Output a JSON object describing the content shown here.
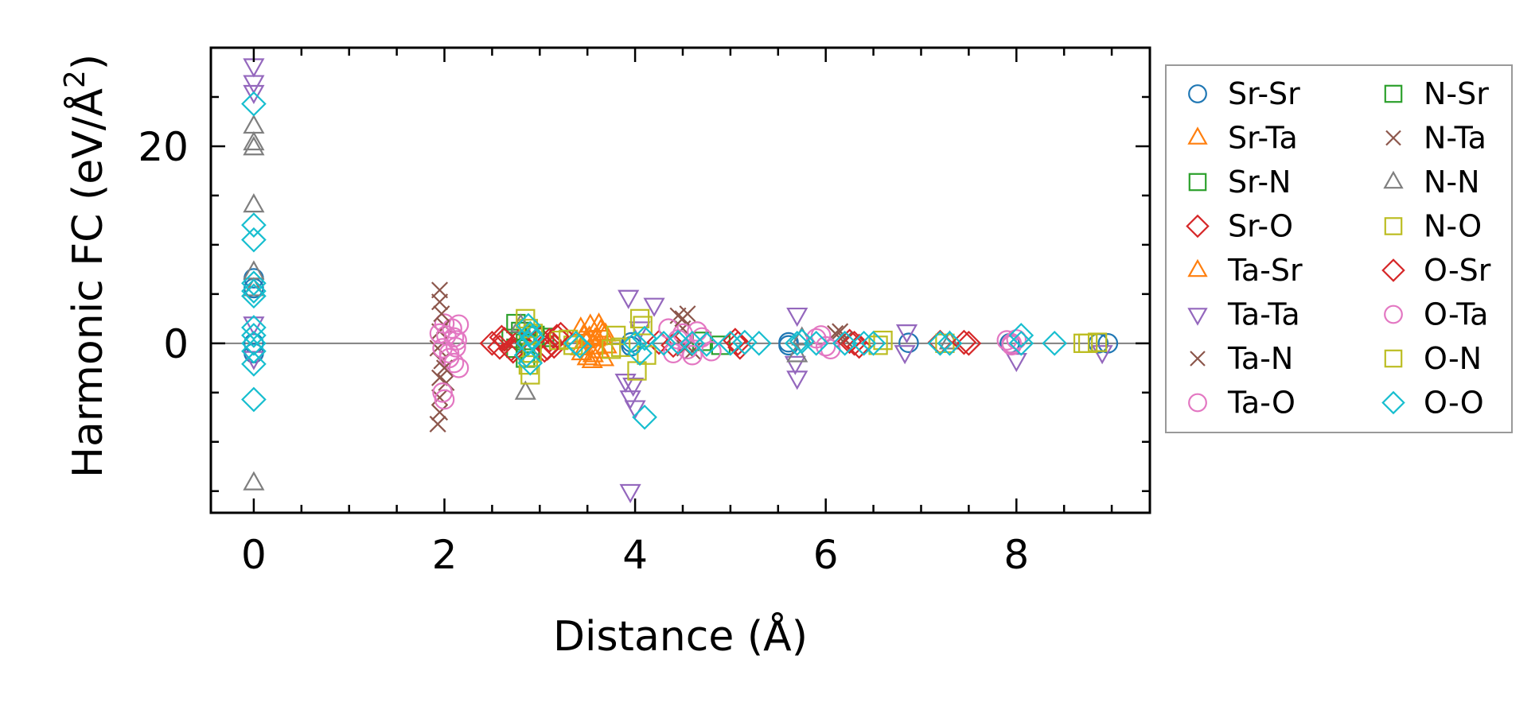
{
  "chart_data": {
    "type": "scatter",
    "title": "",
    "xlabel": "Distance (Å)",
    "ylabel": "Harmonic FC (eV/Å²)",
    "ylabel_main": "Harmonic FC (eV/Å",
    "ylabel_sup": "2",
    "ylabel_close": ")",
    "xlim": [
      -0.45,
      9.4
    ],
    "ylim": [
      -17.2,
      30.0
    ],
    "xticks": [
      0,
      2,
      4,
      6,
      8
    ],
    "yticks": [
      0,
      20
    ],
    "xtick_labels": [
      "0",
      "2",
      "4",
      "6",
      "8"
    ],
    "ytick_labels": [
      "0",
      "20"
    ],
    "grid": false,
    "zero_line": true,
    "legend_position": "outside-right",
    "legend_columns": 2,
    "series": [
      {
        "name": "Sr-Sr",
        "marker": "circle",
        "color": "#1f77b4",
        "points": [
          [
            0,
            0
          ],
          [
            0,
            5.6
          ],
          [
            0,
            6.6
          ],
          [
            0,
            -1.0
          ],
          [
            3.96,
            0.1
          ],
          [
            3.96,
            -0.3
          ],
          [
            5.61,
            0.1
          ],
          [
            5.61,
            -0.2
          ],
          [
            6.87,
            0.05
          ],
          [
            7.93,
            0.0
          ],
          [
            8.86,
            0.0
          ],
          [
            8.96,
            0.0
          ]
        ]
      },
      {
        "name": "Sr-Ta",
        "marker": "triangle-up",
        "color": "#ff7f0e",
        "points": [
          [
            3.43,
            1.5
          ],
          [
            3.43,
            -0.5
          ],
          [
            3.46,
            0.8
          ],
          [
            3.5,
            -1.5
          ],
          [
            3.53,
            1.8
          ],
          [
            3.56,
            -1.2
          ],
          [
            3.6,
            0.5
          ],
          [
            3.63,
            -0.8
          ],
          [
            3.66,
            1.0
          ],
          [
            3.7,
            -0.3
          ],
          [
            3.48,
            0.2
          ],
          [
            3.58,
            0.4
          ],
          [
            3.67,
            -1.6
          ]
        ]
      },
      {
        "name": "Sr-N",
        "marker": "square",
        "color": "#2ca02c",
        "points": [
          [
            2.7,
            0.5
          ],
          [
            2.75,
            -0.5
          ],
          [
            2.8,
            1.2
          ],
          [
            2.85,
            0.0
          ],
          [
            2.9,
            -1.0
          ],
          [
            3.05,
            0.6
          ],
          [
            4.7,
            0.2
          ],
          [
            4.9,
            -0.2
          ]
        ]
      },
      {
        "name": "Sr-O",
        "marker": "diamond",
        "color": "#d62728",
        "points": [
          [
            2.5,
            0.0
          ],
          [
            2.58,
            -0.4
          ],
          [
            2.63,
            0.4
          ],
          [
            2.7,
            -0.6
          ],
          [
            2.78,
            0.2
          ],
          [
            3.0,
            0.5
          ],
          [
            3.05,
            -0.7
          ],
          [
            3.1,
            0.3
          ],
          [
            3.15,
            -0.3
          ],
          [
            3.22,
            0.9
          ],
          [
            4.25,
            0.1
          ],
          [
            4.4,
            -0.2
          ],
          [
            5.05,
            0.3
          ],
          [
            5.1,
            -0.4
          ],
          [
            6.25,
            0.2
          ],
          [
            6.35,
            -0.3
          ],
          [
            7.2,
            0.1
          ],
          [
            7.5,
            0.0
          ]
        ]
      },
      {
        "name": "Ta-Sr",
        "marker": "triangle-up",
        "color": "#ff7f0e",
        "points": [
          [
            3.44,
            -1.0
          ],
          [
            3.52,
            0.6
          ],
          [
            3.59,
            -0.4
          ],
          [
            3.64,
            1.3
          ],
          [
            3.69,
            0.9
          ],
          [
            3.55,
            -1.8
          ],
          [
            3.62,
            1.9
          ]
        ]
      },
      {
        "name": "Ta-Ta",
        "marker": "triangle-down",
        "color": "#9467bd",
        "points": [
          [
            0,
            28.2
          ],
          [
            0,
            26.5
          ],
          [
            0,
            25.5
          ],
          [
            0,
            2.0
          ],
          [
            0,
            -1.5
          ],
          [
            3.93,
            4.7
          ],
          [
            4.2,
            3.9
          ],
          [
            3.9,
            -3.8
          ],
          [
            3.95,
            -5.5
          ],
          [
            4.0,
            -6.5
          ],
          [
            3.95,
            -15.0
          ],
          [
            3.98,
            -4.2
          ],
          [
            4.05,
            1.5
          ],
          [
            5.7,
            2.9
          ],
          [
            5.7,
            -3.5
          ],
          [
            5.68,
            -2.0
          ],
          [
            6.85,
            1.2
          ],
          [
            6.83,
            -0.9
          ],
          [
            8.0,
            -1.7
          ],
          [
            8.9,
            -0.9
          ]
        ]
      },
      {
        "name": "Ta-N",
        "marker": "x",
        "color": "#8c564b",
        "points": [
          [
            1.95,
            5.4
          ],
          [
            1.95,
            4.2
          ],
          [
            1.95,
            1.2
          ],
          [
            1.93,
            -0.5
          ],
          [
            1.97,
            -1.8
          ],
          [
            1.95,
            -3.5
          ],
          [
            1.95,
            -5.5
          ],
          [
            1.95,
            -7.0
          ],
          [
            1.93,
            -8.2
          ],
          [
            2.0,
            1.8
          ],
          [
            2.02,
            -4.0
          ],
          [
            4.45,
            2.8
          ],
          [
            4.55,
            3.0
          ],
          [
            4.5,
            1.5
          ],
          [
            4.6,
            -0.8
          ],
          [
            6.1,
            1.0
          ],
          [
            6.2,
            0.4
          ]
        ]
      },
      {
        "name": "Ta-O",
        "marker": "circle",
        "color": "#e377c2",
        "points": [
          [
            1.95,
            1.0
          ],
          [
            1.98,
            -0.5
          ],
          [
            2.02,
            0.8
          ],
          [
            2.05,
            -1.5
          ],
          [
            2.08,
            1.5
          ],
          [
            2.1,
            -2.0
          ],
          [
            2.13,
            0.3
          ],
          [
            2.15,
            1.9
          ],
          [
            1.98,
            -5.0
          ],
          [
            2.0,
            -5.7
          ],
          [
            2.15,
            -2.5
          ],
          [
            2.0,
            2.0
          ],
          [
            4.35,
            1.5
          ],
          [
            4.4,
            -1.0
          ],
          [
            4.5,
            1.0
          ],
          [
            4.6,
            -1.2
          ],
          [
            4.7,
            0.6
          ],
          [
            4.8,
            -0.8
          ],
          [
            5.95,
            0.8
          ],
          [
            6.05,
            -0.6
          ],
          [
            7.9,
            0.3
          ],
          [
            7.95,
            -0.2
          ]
        ]
      },
      {
        "name": "N-Sr",
        "marker": "square",
        "color": "#2ca02c",
        "points": [
          [
            2.75,
            2.0
          ],
          [
            2.85,
            -1.5
          ],
          [
            2.95,
            0.8
          ]
        ]
      },
      {
        "name": "N-Ta",
        "marker": "x",
        "color": "#8c564b",
        "points": [
          [
            1.97,
            3.0
          ],
          [
            2.0,
            -2.5
          ],
          [
            4.5,
            2.5
          ],
          [
            4.52,
            -0.5
          ],
          [
            6.15,
            1.2
          ]
        ]
      },
      {
        "name": "N-N",
        "marker": "triangle-up",
        "color": "#7f7f7f",
        "points": [
          [
            0,
            22.0
          ],
          [
            0,
            20.3
          ],
          [
            0,
            19.8
          ],
          [
            0,
            14.0
          ],
          [
            0,
            7.2
          ],
          [
            0,
            5.5
          ],
          [
            0,
            -14.2
          ],
          [
            2.85,
            -5.0
          ],
          [
            2.8,
            1.8
          ],
          [
            5.7,
            -1.2
          ],
          [
            5.75,
            0.5
          ],
          [
            7.3,
            0.1
          ]
        ]
      },
      {
        "name": "N-O",
        "marker": "square",
        "color": "#bcbd22",
        "points": [
          [
            2.85,
            2.5
          ],
          [
            2.9,
            -3.2
          ],
          [
            2.88,
            -2.2
          ],
          [
            2.93,
            1.0
          ],
          [
            3.2,
            0.3
          ],
          [
            3.35,
            -0.2
          ],
          [
            3.8,
            0.8
          ],
          [
            3.75,
            -0.6
          ],
          [
            4.05,
            2.5
          ],
          [
            4.02,
            -2.8
          ],
          [
            4.12,
            -1.2
          ],
          [
            6.6,
            0.3
          ],
          [
            7.25,
            0.0
          ],
          [
            8.7,
            0.0
          ],
          [
            8.85,
            0.1
          ]
        ]
      },
      {
        "name": "O-Sr",
        "marker": "diamond",
        "color": "#d62728",
        "points": [
          [
            2.6,
            0.6
          ],
          [
            2.72,
            -0.8
          ],
          [
            3.08,
            -0.5
          ],
          [
            3.18,
            0.7
          ],
          [
            5.08,
            0.0
          ],
          [
            6.3,
            0.0
          ],
          [
            7.45,
            0.1
          ]
        ]
      },
      {
        "name": "O-Ta",
        "marker": "circle",
        "color": "#e377c2",
        "points": [
          [
            2.05,
            -1.0
          ],
          [
            2.1,
            0.6
          ],
          [
            2.12,
            -0.4
          ],
          [
            4.45,
            0.4
          ],
          [
            4.55,
            -0.6
          ],
          [
            4.65,
            1.2
          ],
          [
            5.9,
            0.5
          ],
          [
            6.0,
            -0.3
          ],
          [
            7.95,
            0.0
          ],
          [
            8.0,
            0.4
          ]
        ]
      },
      {
        "name": "O-N",
        "marker": "square",
        "color": "#bcbd22",
        "points": [
          [
            2.88,
            1.5
          ],
          [
            2.92,
            -1.0
          ],
          [
            3.3,
            0.4
          ],
          [
            3.85,
            -0.4
          ],
          [
            4.08,
            1.8
          ],
          [
            6.55,
            -0.2
          ],
          [
            8.75,
            0.0
          ]
        ]
      },
      {
        "name": "O-O",
        "marker": "diamond",
        "color": "#17becf",
        "points": [
          [
            0,
            24.3
          ],
          [
            0,
            12.0
          ],
          [
            0,
            10.5
          ],
          [
            0,
            6.1
          ],
          [
            0,
            5.3
          ],
          [
            0,
            4.8
          ],
          [
            0,
            1.6
          ],
          [
            0,
            0.8
          ],
          [
            0,
            0.0
          ],
          [
            0,
            -0.8
          ],
          [
            0,
            -2.1
          ],
          [
            0,
            -5.7
          ],
          [
            2.88,
            1.8
          ],
          [
            2.9,
            1.0
          ],
          [
            2.88,
            0.0
          ],
          [
            2.86,
            -1.2
          ],
          [
            2.9,
            -2.0
          ],
          [
            2.92,
            0.6
          ],
          [
            3.38,
            0.0
          ],
          [
            3.42,
            -0.3
          ],
          [
            4.0,
            0.0
          ],
          [
            4.05,
            -1.0
          ],
          [
            4.1,
            0.5
          ],
          [
            4.1,
            -7.5
          ],
          [
            4.3,
            0.0
          ],
          [
            4.45,
            0.1
          ],
          [
            4.6,
            0.0
          ],
          [
            4.75,
            -0.1
          ],
          [
            5.0,
            0.0
          ],
          [
            5.15,
            0.1
          ],
          [
            5.3,
            0.0
          ],
          [
            5.7,
            0.0
          ],
          [
            5.75,
            0.2
          ],
          [
            5.9,
            0.0
          ],
          [
            6.2,
            0.0
          ],
          [
            6.4,
            0.0
          ],
          [
            6.5,
            0.0
          ],
          [
            7.2,
            0.0
          ],
          [
            7.3,
            0.0
          ],
          [
            8.05,
            0.0
          ],
          [
            8.05,
            0.8
          ],
          [
            8.4,
            0.0
          ]
        ]
      }
    ]
  }
}
